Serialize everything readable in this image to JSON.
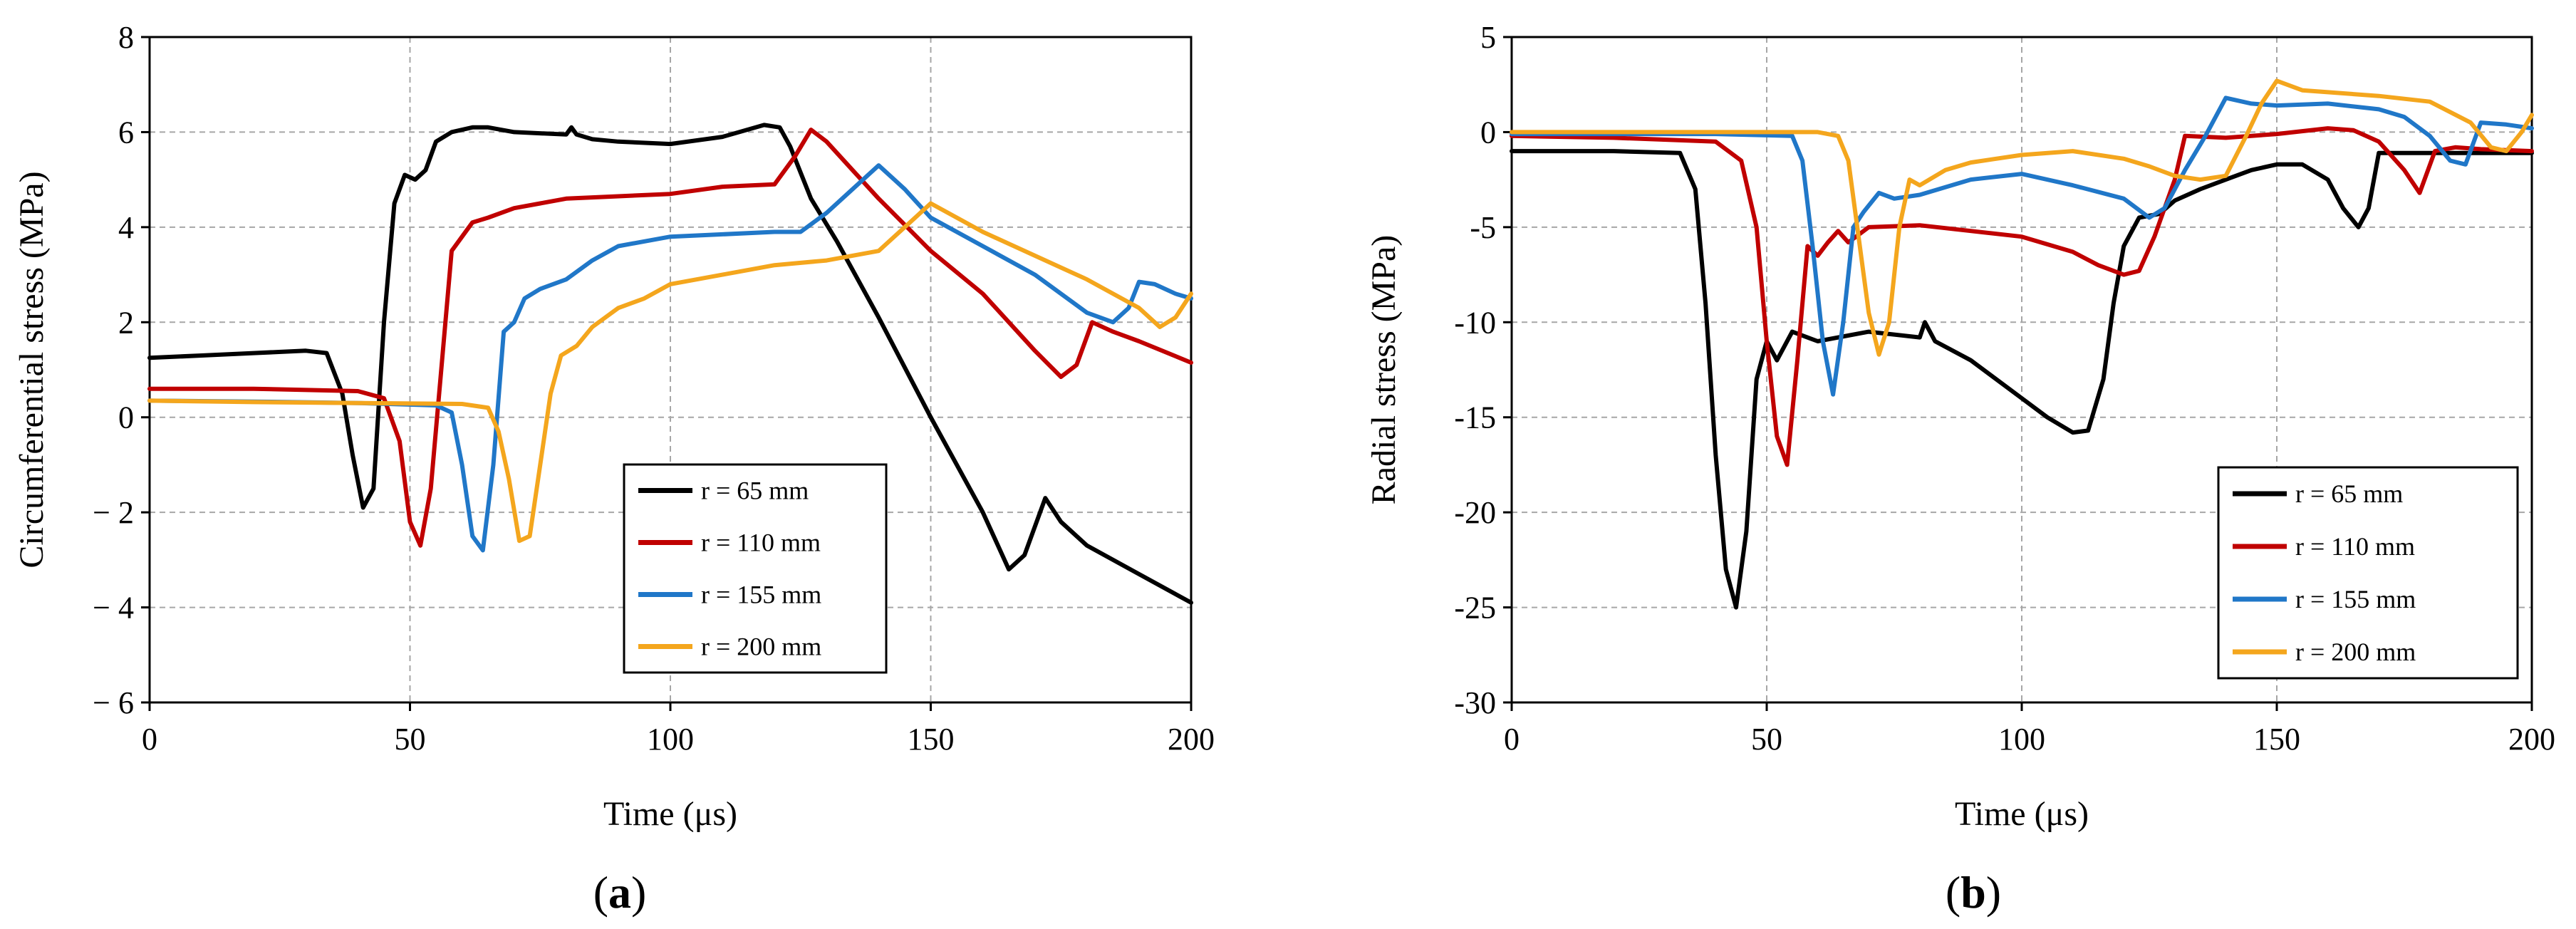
{
  "chart_data": [
    {
      "type": "line",
      "panel_label": "(a)",
      "panel_letter": "a",
      "xlabel": "Time (μs)",
      "ylabel": "Circumferential stress (MPa)",
      "xlim": [
        0,
        200
      ],
      "ylim": [
        -6,
        8
      ],
      "xticks": [
        0,
        50,
        100,
        150,
        200
      ],
      "yticks": [
        -6,
        -4,
        -2,
        0,
        2,
        4,
        6,
        8
      ],
      "ytick_labels": [
        "− 6",
        "− 4",
        "− 2",
        "0",
        "2",
        "4",
        "6",
        "8"
      ],
      "grid": true,
      "legend_position": "lower-right",
      "series": [
        {
          "name": "r = 65 mm",
          "color": "#000000",
          "x": [
            0,
            10,
            20,
            30,
            34,
            37,
            39,
            41,
            43,
            45,
            47,
            49,
            51,
            53,
            55,
            58,
            62,
            65,
            70,
            80,
            81,
            82,
            85,
            90,
            100,
            110,
            118,
            121,
            123,
            127,
            132,
            140,
            150,
            160,
            165,
            168,
            172,
            175,
            180,
            190,
            200
          ],
          "y": [
            1.25,
            1.3,
            1.35,
            1.4,
            1.35,
            0.5,
            -0.8,
            -1.9,
            -1.5,
            2.0,
            4.5,
            5.1,
            5.0,
            5.2,
            5.8,
            6.0,
            6.1,
            6.1,
            6.0,
            5.95,
            6.1,
            5.95,
            5.85,
            5.8,
            5.75,
            5.9,
            6.15,
            6.1,
            5.7,
            4.6,
            3.7,
            2.1,
            0.0,
            -2.0,
            -3.2,
            -2.9,
            -1.7,
            -2.2,
            -2.7,
            -3.3,
            -3.9
          ]
        },
        {
          "name": "r = 110 mm",
          "color": "#c00000",
          "x": [
            0,
            20,
            40,
            45,
            48,
            50,
            52,
            54,
            56,
            58,
            60,
            62,
            65,
            70,
            75,
            80,
            90,
            100,
            110,
            120,
            124,
            127,
            130,
            135,
            140,
            150,
            160,
            170,
            175,
            178,
            181,
            185,
            190,
            200
          ],
          "y": [
            0.6,
            0.6,
            0.55,
            0.4,
            -0.5,
            -2.2,
            -2.7,
            -1.5,
            1.0,
            3.5,
            3.8,
            4.1,
            4.2,
            4.4,
            4.5,
            4.6,
            4.65,
            4.7,
            4.85,
            4.9,
            5.5,
            6.05,
            5.8,
            5.2,
            4.6,
            3.5,
            2.6,
            1.4,
            0.85,
            1.1,
            2.0,
            1.8,
            1.6,
            1.15
          ]
        },
        {
          "name": "r = 155 mm",
          "color": "#2077c8",
          "x": [
            0,
            20,
            40,
            55,
            58,
            60,
            62,
            64,
            66,
            68,
            70,
            72,
            75,
            80,
            85,
            90,
            100,
            110,
            120,
            125,
            130,
            135,
            140,
            145,
            150,
            160,
            170,
            180,
            185,
            188,
            190,
            193,
            197,
            200
          ],
          "y": [
            0.35,
            0.33,
            0.3,
            0.25,
            0.1,
            -1.0,
            -2.5,
            -2.8,
            -1.0,
            1.8,
            2.0,
            2.5,
            2.7,
            2.9,
            3.3,
            3.6,
            3.8,
            3.85,
            3.9,
            3.9,
            4.3,
            4.8,
            5.3,
            4.8,
            4.2,
            3.6,
            3.0,
            2.2,
            2.0,
            2.3,
            2.85,
            2.8,
            2.6,
            2.5
          ]
        },
        {
          "name": "r = 200 mm",
          "color": "#f4a61d",
          "x": [
            0,
            20,
            40,
            60,
            65,
            67,
            69,
            71,
            73,
            75,
            77,
            79,
            82,
            85,
            90,
            95,
            100,
            110,
            120,
            130,
            140,
            145,
            150,
            160,
            170,
            180,
            190,
            194,
            197,
            200
          ],
          "y": [
            0.35,
            0.32,
            0.3,
            0.28,
            0.2,
            -0.3,
            -1.3,
            -2.6,
            -2.5,
            -1.0,
            0.5,
            1.3,
            1.5,
            1.9,
            2.3,
            2.5,
            2.8,
            3.0,
            3.2,
            3.3,
            3.5,
            4.0,
            4.5,
            3.9,
            3.4,
            2.9,
            2.3,
            1.9,
            2.1,
            2.6
          ]
        }
      ]
    },
    {
      "type": "line",
      "panel_label": "(b)",
      "panel_letter": "b",
      "xlabel": "Time (μs)",
      "ylabel": "Radial stress (MPa)",
      "xlim": [
        0,
        200
      ],
      "ylim": [
        -30,
        5
      ],
      "xticks": [
        0,
        50,
        100,
        150,
        200
      ],
      "yticks": [
        -30,
        -25,
        -20,
        -15,
        -10,
        -5,
        0,
        5
      ],
      "ytick_labels": [
        "-30",
        "-25",
        "-20",
        "-15",
        "-10",
        "-5",
        "0",
        "5"
      ],
      "grid": true,
      "legend_position": "lower-right",
      "series": [
        {
          "name": "r = 65 mm",
          "color": "#000000",
          "x": [
            0,
            20,
            33,
            36,
            38,
            40,
            42,
            44,
            46,
            48,
            50,
            52,
            55,
            60,
            70,
            80,
            81,
            83,
            90,
            100,
            105,
            110,
            113,
            116,
            118,
            120,
            123,
            127,
            130,
            135,
            140,
            145,
            150,
            155,
            160,
            163,
            166,
            168,
            170,
            175,
            180,
            200
          ],
          "y": [
            -1.0,
            -1.0,
            -1.1,
            -3.0,
            -9.0,
            -17.0,
            -23.0,
            -25.0,
            -21.0,
            -13.0,
            -11.0,
            -12.0,
            -10.5,
            -11.0,
            -10.5,
            -10.8,
            -10.0,
            -11.0,
            -12.0,
            -14.0,
            -15.0,
            -15.8,
            -15.7,
            -13.0,
            -9.0,
            -6.0,
            -4.5,
            -4.3,
            -3.6,
            -3.0,
            -2.5,
            -2.0,
            -1.7,
            -1.7,
            -2.5,
            -4.0,
            -5.0,
            -4.0,
            -1.1,
            -1.1,
            -1.1,
            -1.1
          ]
        },
        {
          "name": "r = 110 mm",
          "color": "#c00000",
          "x": [
            0,
            20,
            40,
            45,
            48,
            50,
            52,
            54,
            56,
            58,
            60,
            62,
            64,
            66,
            70,
            80,
            90,
            100,
            110,
            115,
            120,
            123,
            126,
            130,
            132,
            140,
            150,
            160,
            165,
            170,
            175,
            178,
            181,
            185,
            190,
            200
          ],
          "y": [
            -0.2,
            -0.3,
            -0.5,
            -1.5,
            -5.0,
            -11.0,
            -16.0,
            -17.5,
            -12.0,
            -6.0,
            -6.5,
            -5.8,
            -5.2,
            -5.8,
            -5.0,
            -4.9,
            -5.2,
            -5.5,
            -6.3,
            -7.0,
            -7.5,
            -7.3,
            -5.5,
            -2.5,
            -0.2,
            -0.3,
            -0.1,
            0.2,
            0.1,
            -0.5,
            -2.0,
            -3.2,
            -1.0,
            -0.8,
            -0.9,
            -1.0
          ]
        },
        {
          "name": "r = 155 mm",
          "color": "#2077c8",
          "x": [
            0,
            20,
            40,
            55,
            57,
            59,
            61,
            63,
            65,
            67,
            69,
            72,
            75,
            80,
            90,
            100,
            110,
            120,
            125,
            128,
            132,
            136,
            140,
            145,
            150,
            160,
            170,
            175,
            180,
            184,
            187,
            190,
            195,
            200
          ],
          "y": [
            -0.1,
            -0.1,
            -0.1,
            -0.2,
            -1.5,
            -6.0,
            -11.0,
            -13.8,
            -10.0,
            -5.0,
            -4.2,
            -3.2,
            -3.5,
            -3.3,
            -2.5,
            -2.2,
            -2.8,
            -3.5,
            -4.5,
            -4.0,
            -2.0,
            -0.2,
            1.8,
            1.5,
            1.4,
            1.5,
            1.2,
            0.8,
            -0.2,
            -1.5,
            -1.7,
            0.5,
            0.4,
            0.2
          ]
        },
        {
          "name": "r = 200 mm",
          "color": "#f4a61d",
          "x": [
            0,
            20,
            40,
            60,
            64,
            66,
            68,
            70,
            72,
            74,
            76,
            78,
            80,
            85,
            90,
            100,
            110,
            120,
            125,
            130,
            135,
            140,
            144,
            147,
            150,
            155,
            160,
            170,
            180,
            188,
            192,
            195,
            198,
            200
          ],
          "y": [
            0.0,
            0.0,
            0.0,
            0.0,
            -0.2,
            -1.5,
            -5.5,
            -9.5,
            -11.7,
            -10.0,
            -5.0,
            -2.5,
            -2.8,
            -2.0,
            -1.6,
            -1.2,
            -1.0,
            -1.4,
            -1.8,
            -2.3,
            -2.5,
            -2.3,
            -0.2,
            1.5,
            2.7,
            2.2,
            2.1,
            1.9,
            1.6,
            0.5,
            -0.8,
            -1.0,
            0.0,
            0.9
          ]
        }
      ]
    }
  ]
}
